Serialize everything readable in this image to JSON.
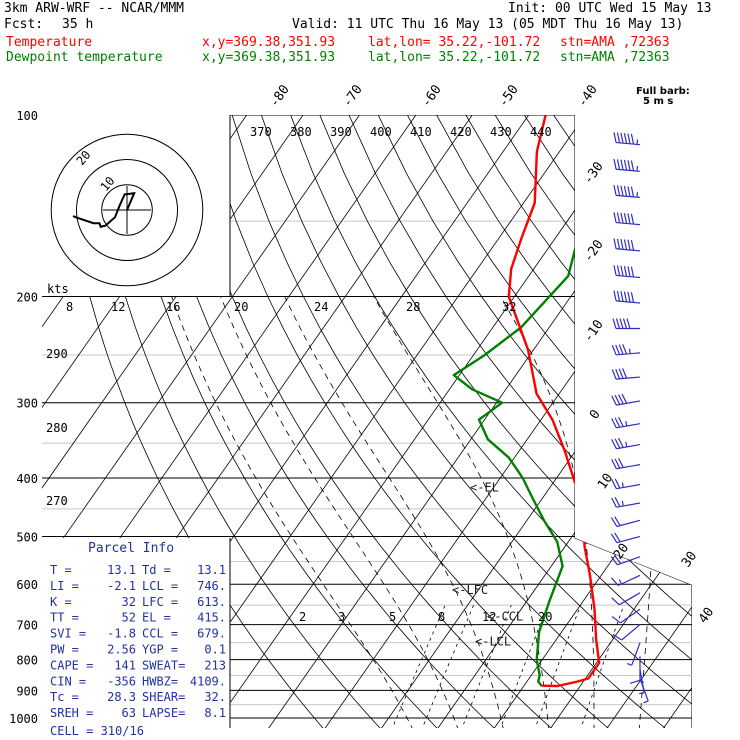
{
  "header": {
    "model": "3km ARW-WRF -- NCAR/MMM",
    "init": "Init: 00 UTC Wed 15 May 13",
    "fcst_label": "Fcst:",
    "fcst_value": "35 h",
    "valid": "Valid: 11 UTC Thu 16 May 13 (05 MDT Thu 16 May 13)",
    "rows": [
      {
        "field": "Temperature",
        "xy": "x,y=369.38,351.93",
        "latlon": "lat,lon= 35.22,-101.72",
        "stn": "stn=AMA ,72363"
      },
      {
        "field": "Dewpoint temperature",
        "xy": "x,y=369.38,351.93",
        "latlon": "lat,lon= 35.22,-101.72",
        "stn": "stn=AMA ,72363"
      }
    ]
  },
  "colors": {
    "temperature": "#ff0000",
    "dewpoint": "#008000",
    "wind": "#3030c0",
    "hodograph": "#000000"
  },
  "wind_key": {
    "line1": "Full barb:",
    "line2": "5 m s"
  },
  "pressure_labels": [
    "100",
    "200",
    "300",
    "400",
    "500",
    "600",
    "700",
    "800",
    "900",
    "1000"
  ],
  "theta_labels": [
    "370",
    "380",
    "390",
    "400",
    "410",
    "420",
    "430",
    "440"
  ],
  "isotherm_labels": [
    "-80",
    "-70",
    "-60",
    "-50",
    "-40",
    "-30",
    "-20",
    "-10",
    "0",
    "10",
    "20",
    "30",
    "40"
  ],
  "mixing_ratio_labels": [
    "2",
    "3",
    "5",
    "8",
    "12",
    "20"
  ],
  "level_markers": [
    "<-EL",
    "<-LFC",
    "<-CCL",
    "<-LCL"
  ],
  "hodo": {
    "units": "kts",
    "ring_labels": [
      "10",
      "20"
    ],
    "scale_labels": [
      "8",
      "12",
      "16",
      "20",
      "24",
      "28",
      "32"
    ],
    "side_labels": [
      "290",
      "280",
      "270"
    ]
  },
  "parcel_info": {
    "title": "Parcel Info",
    "rows": [
      [
        "T  =",
        "13.1",
        "Td  =",
        "13.1"
      ],
      [
        "LI =",
        "-2.1",
        "LCL =",
        "746."
      ],
      [
        "K  =",
        "32",
        "LFC =",
        "613."
      ],
      [
        "TT =",
        "52",
        "EL  =",
        "415."
      ],
      [
        "SVI =",
        "-1.8",
        "CCL =",
        "679."
      ],
      [
        "PW =",
        "2.56",
        "YGP =",
        "0.1"
      ],
      [
        "CAPE =",
        "141",
        "SWEAT=",
        "213"
      ],
      [
        "CIN =",
        "-356",
        "HWBZ=",
        "4109."
      ],
      [
        "Tc =",
        "28.3",
        "SHEAR=",
        "32."
      ],
      [
        "SREH =",
        "63",
        "LAPSE=",
        "8.1"
      ]
    ],
    "cell": "CELL = 310/16"
  },
  "chart_data": {
    "type": "line",
    "title": "",
    "xlabel": "",
    "ylabel": "",
    "y_units": "hPa",
    "y_scale": "log-pressure",
    "ylim": [
      1000,
      100
    ],
    "grid": true,
    "series": [
      {
        "name": "Temperature",
        "points": [
          [
            884,
            13.1
          ],
          [
            885,
            16
          ],
          [
            870,
            19
          ],
          [
            860,
            20.5
          ],
          [
            810,
            20.5
          ],
          [
            740,
            17
          ],
          [
            660,
            13
          ],
          [
            580,
            8
          ],
          [
            520,
            3.5
          ],
          [
            470,
            0
          ],
          [
            435,
            -3
          ],
          [
            400,
            -7
          ],
          [
            360,
            -12
          ],
          [
            320,
            -18
          ],
          [
            290,
            -24
          ],
          [
            245,
            -31
          ],
          [
            200,
            -41
          ],
          [
            180,
            -44
          ],
          [
            160,
            -46
          ],
          [
            140,
            -48
          ],
          [
            115,
            -54
          ],
          [
            100,
            -57
          ]
        ]
      },
      {
        "name": "Dewpoint temperature",
        "points": [
          [
            884,
            13.1
          ],
          [
            870,
            12
          ],
          [
            850,
            11.5
          ],
          [
            800,
            9
          ],
          [
            720,
            6
          ],
          [
            640,
            4
          ],
          [
            560,
            2
          ],
          [
            510,
            -2
          ],
          [
            470,
            -7
          ],
          [
            430,
            -12
          ],
          [
            400,
            -16
          ],
          [
            370,
            -21
          ],
          [
            345,
            -27
          ],
          [
            320,
            -31
          ],
          [
            300,
            -29
          ],
          [
            285,
            -36
          ],
          [
            270,
            -41
          ],
          [
            250,
            -38
          ],
          [
            225,
            -35
          ],
          [
            185,
            -33
          ],
          [
            160,
            -36
          ],
          [
            140,
            -35
          ],
          [
            125,
            -31
          ],
          [
            110,
            -29
          ],
          [
            100,
            -29
          ]
        ]
      }
    ],
    "markers": [
      {
        "label": "<-EL",
        "p": 415
      },
      {
        "label": "<-LFC",
        "p": 613
      },
      {
        "label": "<-CCL",
        "p": 679
      },
      {
        "label": "<-LCL",
        "p": 746
      }
    ],
    "wind": [
      {
        "p": 112,
        "dir": 275,
        "spd": 34
      },
      {
        "p": 124,
        "dir": 275,
        "spd": 34
      },
      {
        "p": 137,
        "dir": 275,
        "spd": 34
      },
      {
        "p": 152,
        "dir": 275,
        "spd": 32
      },
      {
        "p": 168,
        "dir": 275,
        "spd": 32
      },
      {
        "p": 186,
        "dir": 275,
        "spd": 32
      },
      {
        "p": 205,
        "dir": 275,
        "spd": 30
      },
      {
        "p": 226,
        "dir": 270,
        "spd": 27
      },
      {
        "p": 248,
        "dir": 265,
        "spd": 23
      },
      {
        "p": 272,
        "dir": 265,
        "spd": 22
      },
      {
        "p": 298,
        "dir": 260,
        "spd": 20
      },
      {
        "p": 325,
        "dir": 260,
        "spd": 19
      },
      {
        "p": 352,
        "dir": 260,
        "spd": 18
      },
      {
        "p": 380,
        "dir": 260,
        "spd": 15
      },
      {
        "p": 410,
        "dir": 260,
        "spd": 14
      },
      {
        "p": 440,
        "dir": 260,
        "spd": 13
      },
      {
        "p": 470,
        "dir": 255,
        "spd": 12
      },
      {
        "p": 500,
        "dir": 255,
        "spd": 12
      },
      {
        "p": 540,
        "dir": 250,
        "spd": 10
      },
      {
        "p": 580,
        "dir": 245,
        "spd": 9
      },
      {
        "p": 620,
        "dir": 240,
        "spd": 7
      },
      {
        "p": 660,
        "dir": 235,
        "spd": 6
      },
      {
        "p": 700,
        "dir": 230,
        "spd": 5
      },
      {
        "p": 750,
        "dir": 200,
        "spd": 4
      },
      {
        "p": 790,
        "dir": 180,
        "spd": 6
      },
      {
        "p": 830,
        "dir": 170,
        "spd": 4
      },
      {
        "p": 860,
        "dir": 160,
        "spd": 3
      }
    ],
    "hodograph": [
      [
        0,
        0
      ],
      [
        -14,
        6
      ],
      [
        -13,
        -2
      ],
      [
        -4,
        -6
      ],
      [
        6,
        -10
      ],
      [
        13,
        -18
      ],
      [
        14,
        -22
      ],
      [
        11,
        -23
      ],
      [
        11,
        -28
      ],
      [
        6,
        -43
      ],
      [
        5,
        -45
      ]
    ]
  }
}
